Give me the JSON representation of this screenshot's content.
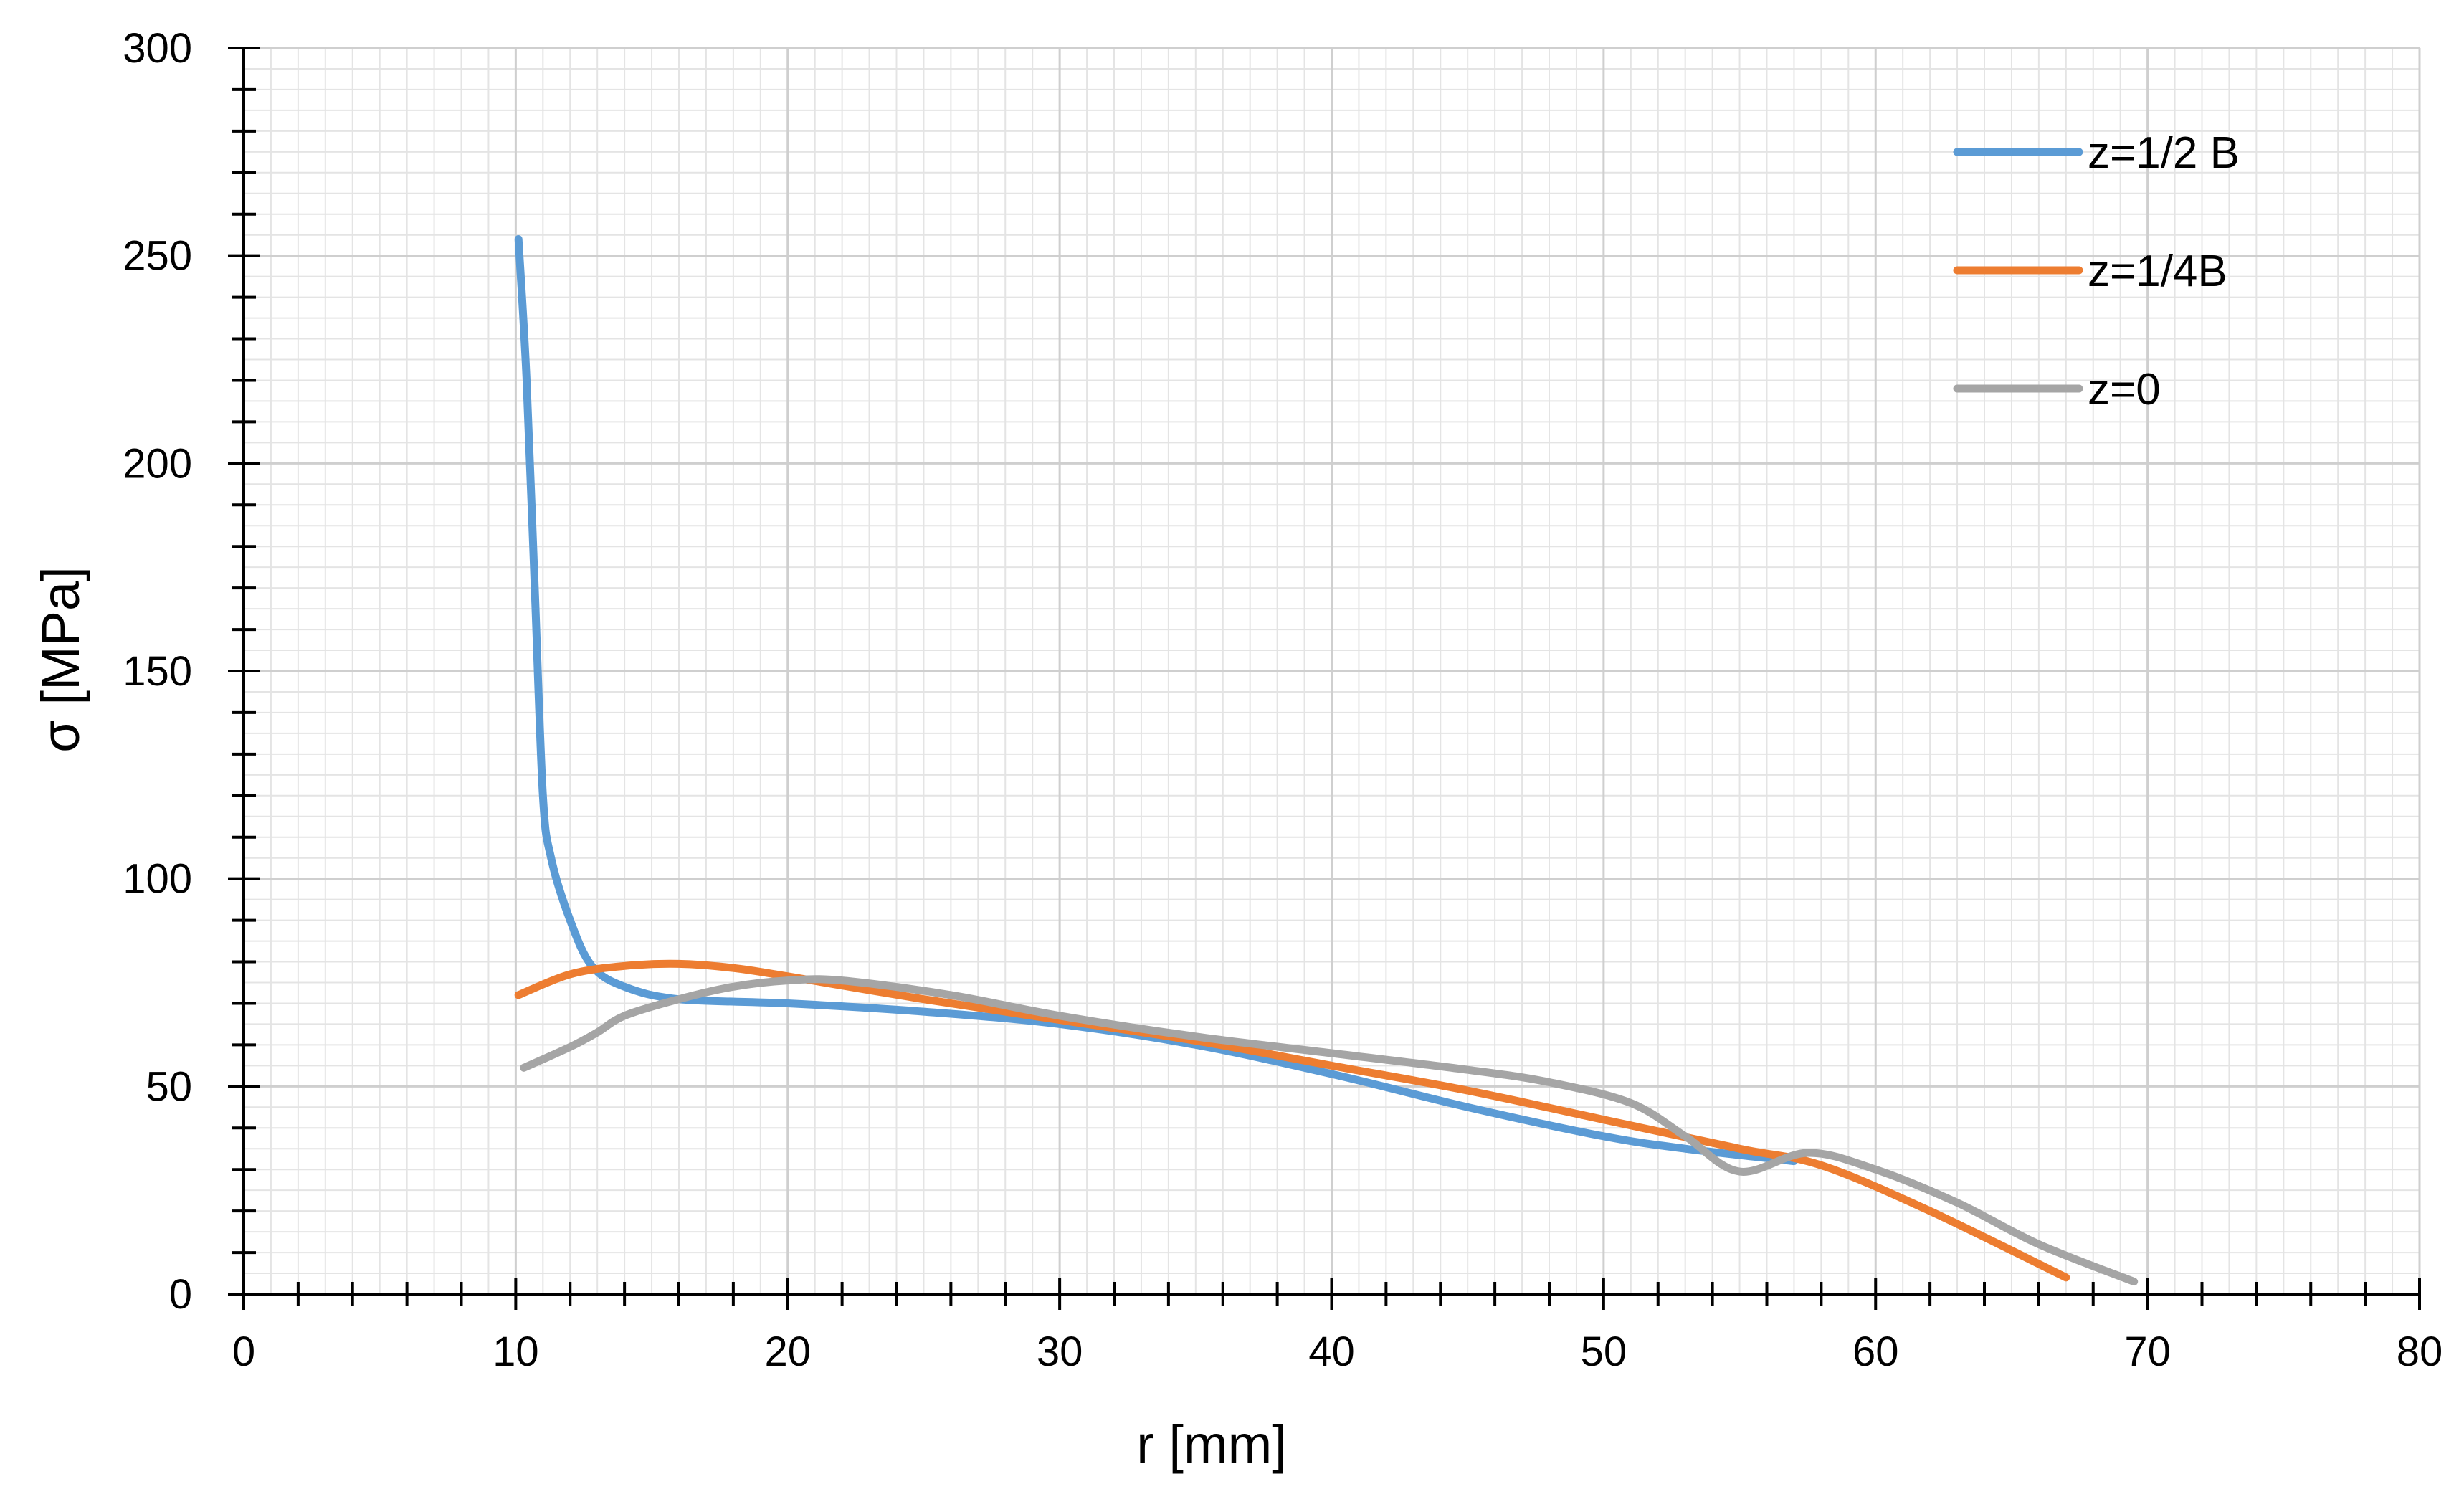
{
  "chart_data": {
    "type": "line",
    "title": "",
    "xlabel": "r [mm]",
    "ylabel": "σ [MPa]",
    "xlim": [
      0,
      80
    ],
    "ylim": [
      0,
      300
    ],
    "x_major_step": 10,
    "y_major_step": 50,
    "x_minor_step": 2,
    "y_minor_step": 10,
    "grid": true,
    "legend_position": "top-right",
    "x_tick_labels": [
      "0",
      "10",
      "20",
      "30",
      "40",
      "50",
      "60",
      "70",
      "80"
    ],
    "y_tick_labels": [
      "0",
      "50",
      "100",
      "150",
      "200",
      "250",
      "300"
    ],
    "series": [
      {
        "name": "z=1/2 B",
        "color": "#5B9BD5",
        "points": [
          [
            10.1,
            254
          ],
          [
            10.4,
            220
          ],
          [
            10.7,
            170
          ],
          [
            11.0,
            120
          ],
          [
            11.3,
            105
          ],
          [
            12.0,
            90
          ],
          [
            12.8,
            79
          ],
          [
            14.0,
            74
          ],
          [
            16.0,
            71
          ],
          [
            20.0,
            70
          ],
          [
            25.0,
            68
          ],
          [
            30.0,
            65
          ],
          [
            35.0,
            60
          ],
          [
            40.0,
            53
          ],
          [
            45.0,
            45
          ],
          [
            50.0,
            38
          ],
          [
            53.0,
            35
          ],
          [
            57.0,
            32
          ]
        ]
      },
      {
        "name": "z=1/4B",
        "color": "#ED7D31",
        "points": [
          [
            10.1,
            72
          ],
          [
            12.0,
            77
          ],
          [
            14.0,
            79
          ],
          [
            16.0,
            79.5
          ],
          [
            18.0,
            78.5
          ],
          [
            20.0,
            76.5
          ],
          [
            25.0,
            71
          ],
          [
            30.0,
            66
          ],
          [
            35.0,
            61
          ],
          [
            40.0,
            55
          ],
          [
            45.0,
            49
          ],
          [
            50.0,
            42
          ],
          [
            55.0,
            35
          ],
          [
            58.0,
            31
          ],
          [
            62.0,
            20
          ],
          [
            67.0,
            4
          ]
        ]
      },
      {
        "name": "z=0",
        "color": "#A5A5A5",
        "points": [
          [
            10.3,
            54.5
          ],
          [
            12.0,
            59.5
          ],
          [
            13.0,
            63
          ],
          [
            14.0,
            67
          ],
          [
            16.0,
            71
          ],
          [
            18.0,
            74
          ],
          [
            20.0,
            75.5
          ],
          [
            22.0,
            75.5
          ],
          [
            26.0,
            72
          ],
          [
            30.0,
            67
          ],
          [
            35.0,
            62
          ],
          [
            40.0,
            58
          ],
          [
            45.0,
            54
          ],
          [
            48.0,
            51
          ],
          [
            51.0,
            46
          ],
          [
            53.0,
            38
          ],
          [
            55.0,
            29.5
          ],
          [
            57.5,
            34
          ],
          [
            60.0,
            30
          ],
          [
            63.0,
            22
          ],
          [
            66.0,
            12
          ],
          [
            69.5,
            3
          ]
        ]
      }
    ]
  }
}
